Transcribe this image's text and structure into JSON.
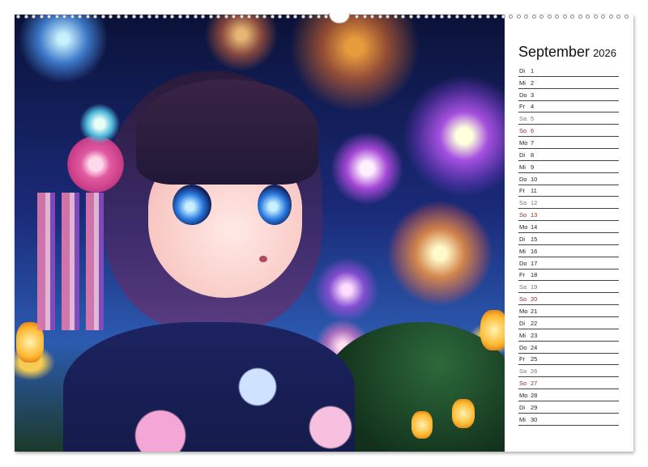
{
  "calendar": {
    "month": "September",
    "year": "2026",
    "days": [
      {
        "wd": "Di",
        "d": "1"
      },
      {
        "wd": "Mi",
        "d": "2"
      },
      {
        "wd": "Do",
        "d": "3"
      },
      {
        "wd": "Fr",
        "d": "4"
      },
      {
        "wd": "Sa",
        "d": "5"
      },
      {
        "wd": "So",
        "d": "6"
      },
      {
        "wd": "Mo",
        "d": "7"
      },
      {
        "wd": "Di",
        "d": "8"
      },
      {
        "wd": "Mi",
        "d": "9"
      },
      {
        "wd": "Do",
        "d": "10"
      },
      {
        "wd": "Fr",
        "d": "11"
      },
      {
        "wd": "Sa",
        "d": "12"
      },
      {
        "wd": "So",
        "d": "13"
      },
      {
        "wd": "Mo",
        "d": "14"
      },
      {
        "wd": "Di",
        "d": "15"
      },
      {
        "wd": "Mi",
        "d": "16"
      },
      {
        "wd": "Do",
        "d": "17"
      },
      {
        "wd": "Fr",
        "d": "18"
      },
      {
        "wd": "Sa",
        "d": "19"
      },
      {
        "wd": "So",
        "d": "20"
      },
      {
        "wd": "Mo",
        "d": "21"
      },
      {
        "wd": "Di",
        "d": "22"
      },
      {
        "wd": "Mi",
        "d": "23"
      },
      {
        "wd": "Do",
        "d": "24"
      },
      {
        "wd": "Fr",
        "d": "25"
      },
      {
        "wd": "Sa",
        "d": "26"
      },
      {
        "wd": "So",
        "d": "27"
      },
      {
        "wd": "Mo",
        "d": "28"
      },
      {
        "wd": "Di",
        "d": "29"
      },
      {
        "wd": "Mi",
        "d": "30"
      }
    ]
  },
  "colors": {
    "sunday": "#8b2a2a",
    "saturday": "#777777",
    "text": "#222222"
  },
  "artwork": {
    "subject": "anime-girl-kimono-fireworks"
  }
}
